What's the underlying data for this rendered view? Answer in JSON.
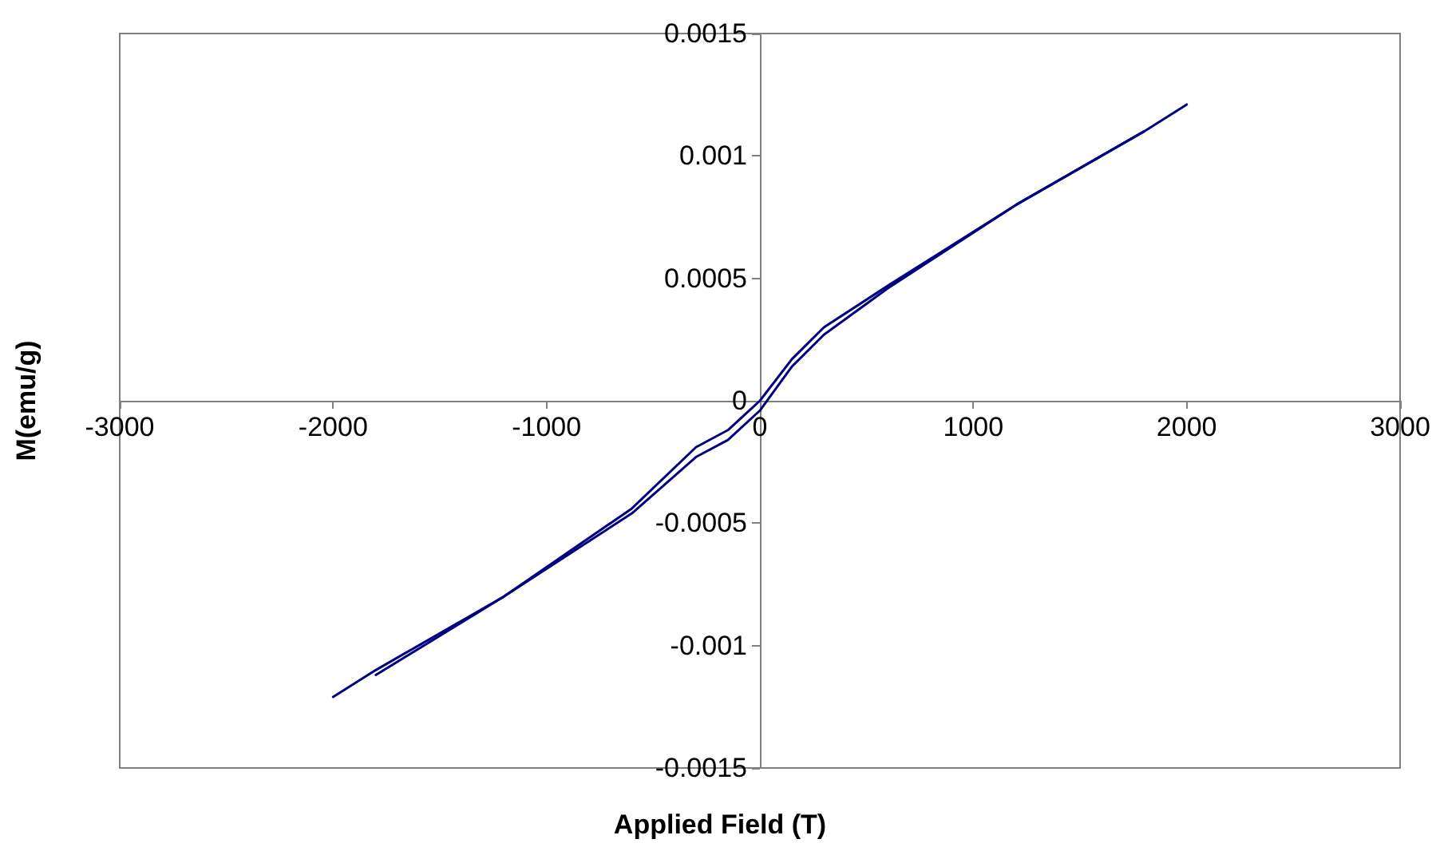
{
  "chart_data": {
    "type": "line",
    "xlabel": "Applied Field (T)",
    "ylabel": "M(emu/g)",
    "series": [
      {
        "color": "#000080",
        "x": [
          2000,
          1800,
          1200,
          600,
          300,
          150,
          0,
          -150,
          -300,
          -600,
          -1200,
          -1800,
          -2000
        ],
        "values": [
          0.00121,
          0.0011,
          0.0008,
          0.00047,
          0.0003,
          0.00017,
          0,
          -0.00012,
          -0.00019,
          -0.00044,
          -0.0008,
          -0.0011,
          -0.00121
        ]
      },
      {
        "color": "#000080",
        "x": [
          -1800,
          -1200,
          -600,
          -300,
          -150,
          0,
          150,
          300,
          600,
          1200,
          1800
        ],
        "values": [
          -0.00112,
          -0.0008,
          -0.00046,
          -0.00023,
          -0.00016,
          -4e-05,
          0.00014,
          0.00027,
          0.00046,
          0.0008,
          0.0011
        ]
      }
    ],
    "xlim": [
      -3000,
      3000
    ],
    "xticks": [
      -3000,
      -2000,
      -1000,
      0,
      1000,
      2000,
      3000
    ],
    "ylim": [
      -0.0015,
      0.0015
    ],
    "yticks": [
      -0.0015,
      -0.001,
      -0.0005,
      0,
      0.0005,
      0.001,
      0.0015
    ],
    "grid": false,
    "marker": "none",
    "line_style": "solid"
  }
}
